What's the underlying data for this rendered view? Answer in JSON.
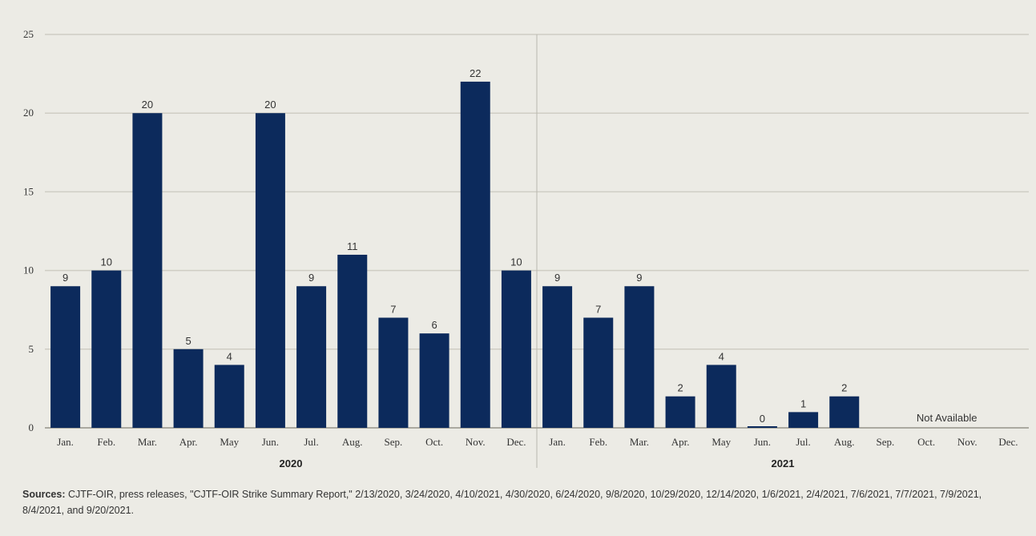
{
  "chart_data": {
    "type": "bar",
    "categories": [
      "Jan.",
      "Feb.",
      "Mar.",
      "Apr.",
      "May",
      "Jun.",
      "Jul.",
      "Aug.",
      "Sep.",
      "Oct.",
      "Nov.",
      "Dec.",
      "Jan.",
      "Feb.",
      "Mar.",
      "Apr.",
      "May",
      "Jun.",
      "Jul.",
      "Aug.",
      "Sep.",
      "Oct.",
      "Nov.",
      "Dec."
    ],
    "groups": [
      {
        "label": "2020",
        "start": 0,
        "end": 11
      },
      {
        "label": "2021",
        "start": 12,
        "end": 23
      }
    ],
    "values": [
      9,
      10,
      20,
      5,
      4,
      20,
      9,
      11,
      7,
      6,
      22,
      10,
      9,
      7,
      9,
      2,
      4,
      0,
      1,
      2,
      null,
      null,
      null,
      null
    ],
    "ylim": [
      0,
      25
    ],
    "yticks": [
      0,
      5,
      10,
      15,
      20,
      25
    ],
    "grid": true,
    "annotation": "Not Available",
    "bar_color": "#0c2a5c",
    "grid_color": "#cfcdc4"
  },
  "source": {
    "lead": "Sources:",
    "text": " CJTF-OIR, press releases, \"CJTF-OIR Strike Summary Report,\" 2/13/2020, 3/24/2020, 4/10/2021, 4/30/2020, 6/24/2020, 9/8/2020, 10/29/2020, 12/14/2020, 1/6/2021, 2/4/2021, 7/6/2021, 7/7/2021, 7/9/2021, 8/4/2021, and 9/20/2021."
  }
}
